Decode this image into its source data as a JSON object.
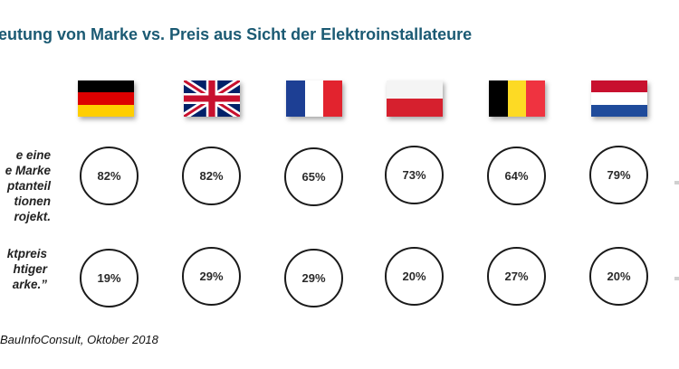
{
  "title": "eutung von Marke vs. Preis aus Sicht der Elektroinstallateure",
  "source": "BauInfoConsult, Oktober 2018",
  "chart_data": {
    "type": "table",
    "title": "eutung von Marke vs. Preis aus Sicht der Elektroinstallateure",
    "columns": [
      {
        "country": "Germany",
        "flag_icon": "germany-flag-icon"
      },
      {
        "country": "United Kingdom",
        "flag_icon": "uk-flag-icon"
      },
      {
        "country": "France",
        "flag_icon": "france-flag-icon"
      },
      {
        "country": "Poland",
        "flag_icon": "poland-flag-icon"
      },
      {
        "country": "Belgium",
        "flag_icon": "belgium-flag-icon"
      },
      {
        "country": "Netherlands",
        "flag_icon": "netherlands-flag-icon"
      }
    ],
    "rows": [
      {
        "label_lines": [
          "e eine",
          "e Marke",
          "ptanteil",
          "tionen",
          "rojekt."
        ],
        "values": [
          "82%",
          "82%",
          "65%",
          "73%",
          "64%",
          "79%"
        ]
      },
      {
        "label_lines": [
          "ktpreis",
          "htiger",
          "arke.”"
        ],
        "values": [
          "19%",
          "29%",
          "29%",
          "20%",
          "27%",
          "20%"
        ]
      }
    ],
    "colors": {
      "title": "#1b5a73",
      "circle_border": "#1a1a1a",
      "text": "#2a2a2a"
    }
  }
}
